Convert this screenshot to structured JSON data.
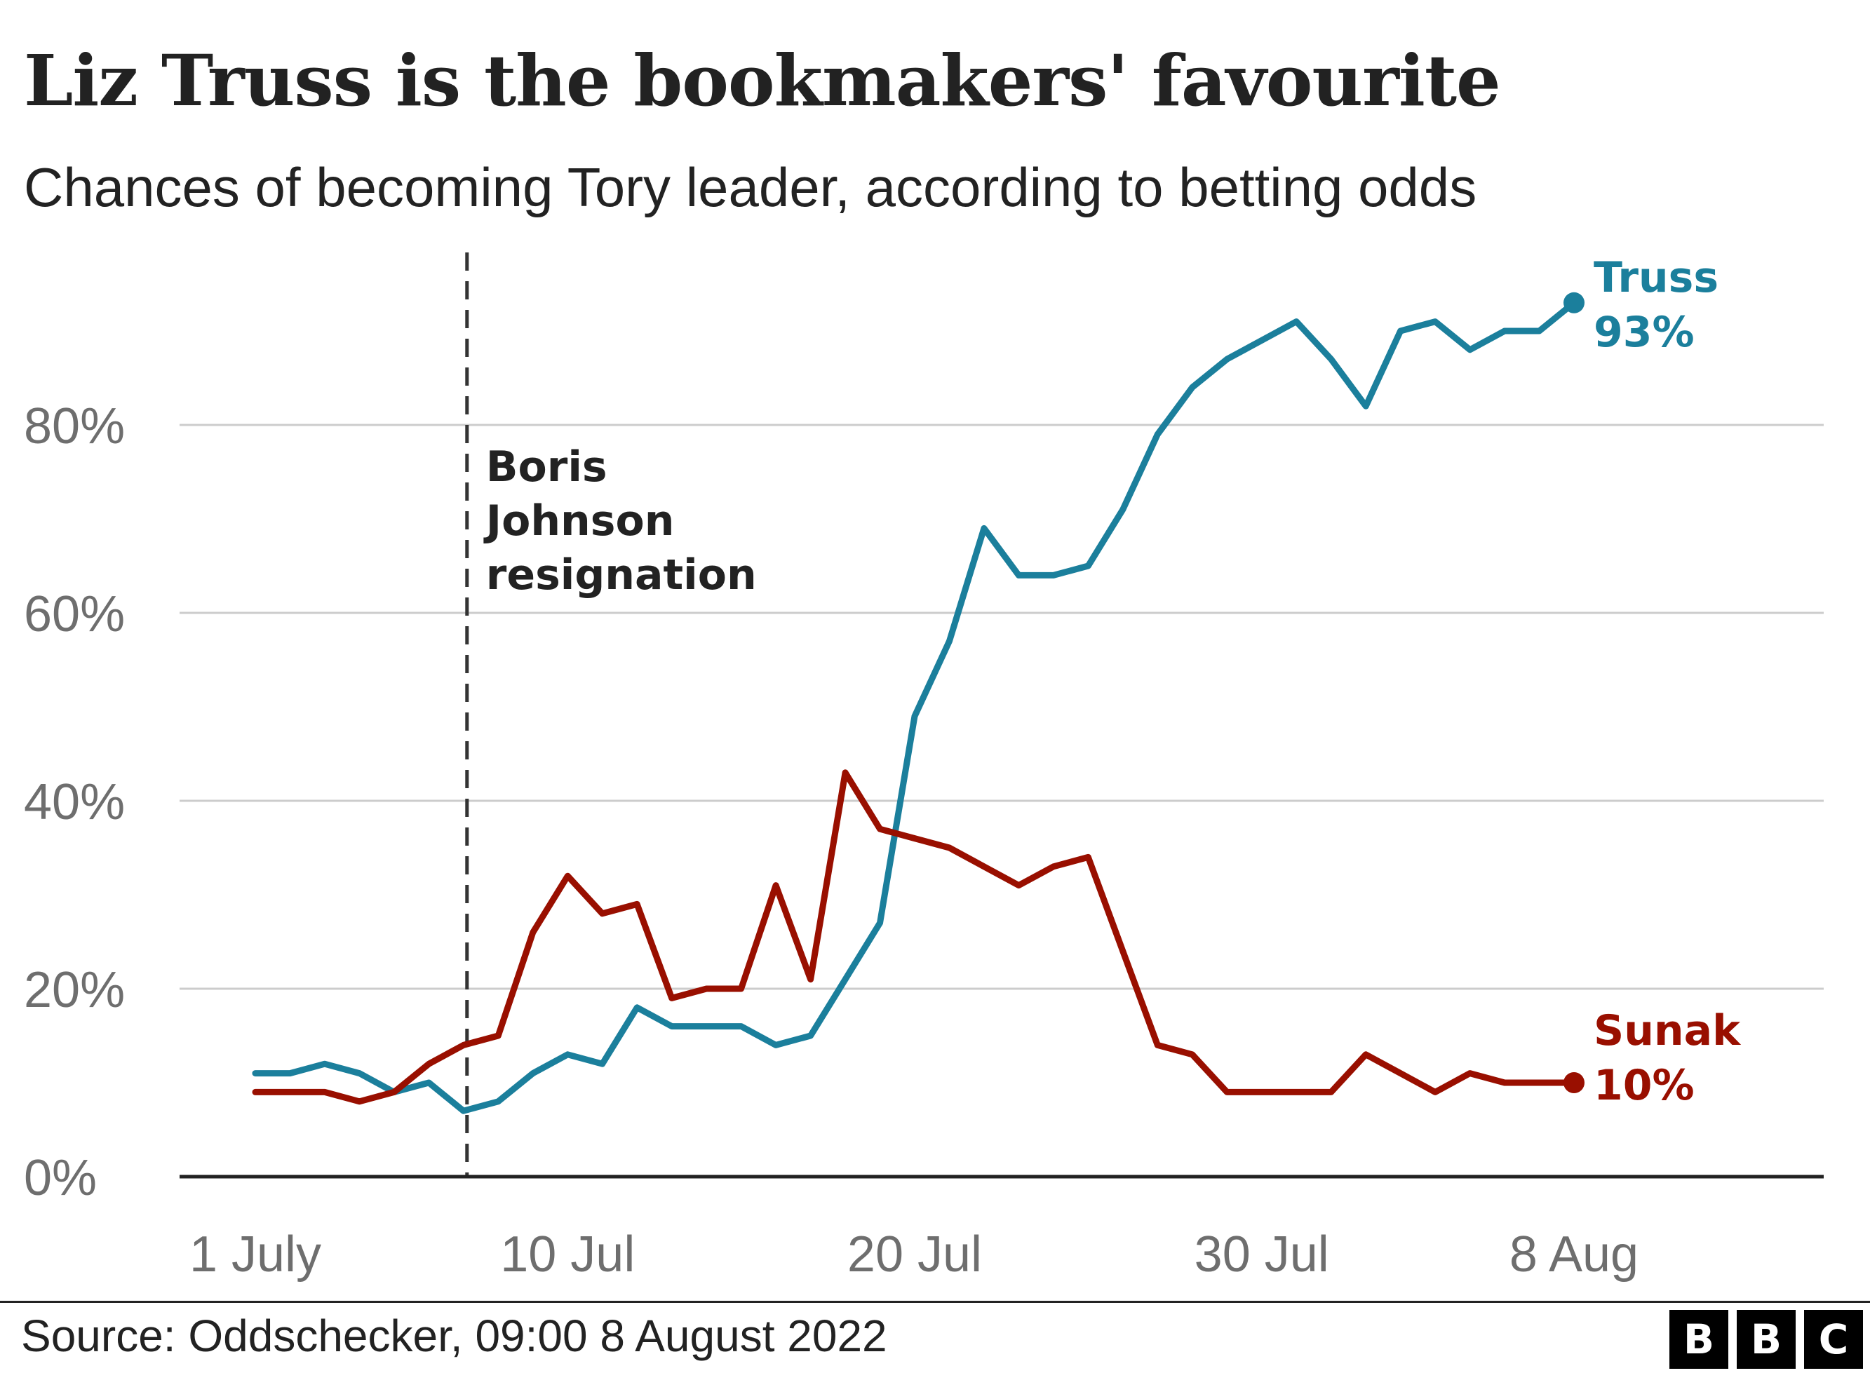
{
  "title": "Liz Truss is the bookmakers' favourite",
  "subtitle": "Chances of becoming Tory leader, according to betting odds",
  "source": "Source: Oddschecker, 09:00 8 August 2022",
  "logo": [
    "B",
    "B",
    "C"
  ],
  "colors": {
    "truss": "#1b7f9c",
    "sunak": "#990f00",
    "grid": "#cccccc",
    "axis": "#222222"
  },
  "chart_data": {
    "type": "line",
    "title": "Liz Truss is the bookmakers' favourite",
    "subtitle": "Chances of becoming Tory leader, according to betting odds",
    "xlabel": "",
    "ylabel": "",
    "x_unit": "day of July 2022",
    "xlim": [
      -2,
      45
    ],
    "ylim": [
      0,
      100
    ],
    "y_ticks": [
      {
        "value": 0,
        "label": "0%"
      },
      {
        "value": 20,
        "label": "20%"
      },
      {
        "value": 40,
        "label": "40%"
      },
      {
        "value": 60,
        "label": "60%"
      },
      {
        "value": 80,
        "label": "80%"
      }
    ],
    "x_ticks": [
      {
        "value": 1,
        "label": "1 July"
      },
      {
        "value": 10,
        "label": "10 Jul"
      },
      {
        "value": 20,
        "label": "20 Jul"
      },
      {
        "value": 30,
        "label": "30 Jul"
      },
      {
        "value": 39,
        "label": "8 Aug"
      }
    ],
    "grid": true,
    "series": [
      {
        "name": "Truss",
        "end_label": "93%",
        "color": "#1b7f9c",
        "x": [
          1,
          2,
          3,
          4,
          5,
          6,
          7,
          8,
          9,
          10,
          11,
          12,
          13,
          14,
          15,
          16,
          17,
          18,
          19,
          20,
          21,
          22,
          23,
          24,
          25,
          26,
          27,
          28,
          29,
          30,
          31,
          32,
          33,
          34,
          35,
          36,
          37,
          38,
          39
        ],
        "values": [
          11,
          11,
          12,
          11,
          9,
          10,
          7,
          8,
          11,
          13,
          12,
          18,
          16,
          16,
          16,
          14,
          15,
          21,
          27,
          49,
          57,
          69,
          64,
          64,
          65,
          71,
          79,
          84,
          87,
          89,
          91,
          87,
          82,
          90,
          91,
          88,
          90,
          90,
          93
        ]
      },
      {
        "name": "Sunak",
        "end_label": "10%",
        "color": "#990f00",
        "x": [
          1,
          2,
          3,
          4,
          5,
          6,
          7,
          8,
          9,
          10,
          11,
          12,
          13,
          14,
          15,
          16,
          17,
          18,
          19,
          20,
          21,
          22,
          23,
          24,
          25,
          26,
          27,
          28,
          29,
          30,
          31,
          32,
          33,
          34,
          35,
          36,
          37,
          38,
          39
        ],
        "values": [
          9,
          9,
          9,
          8,
          9,
          12,
          14,
          15,
          26,
          32,
          28,
          29,
          19,
          20,
          20,
          31,
          21,
          43,
          37,
          36,
          35,
          33,
          31,
          33,
          34,
          24,
          14,
          13,
          9,
          9,
          9,
          9,
          13,
          11,
          9,
          11,
          10,
          10,
          10
        ]
      }
    ],
    "annotations": [
      {
        "x": 7.1,
        "lines": [
          "Boris",
          "Johnson",
          "resignation"
        ]
      }
    ]
  }
}
